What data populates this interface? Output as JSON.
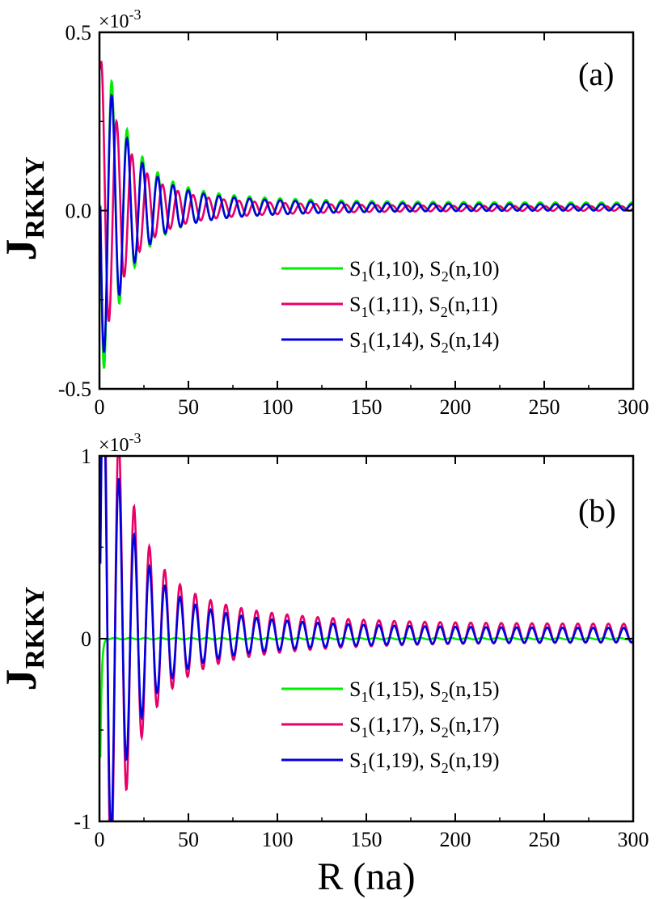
{
  "xlabel": "R (na)",
  "chart_data": [
    {
      "type": "line",
      "panel_label": "(a)",
      "ylabel": "J",
      "ylabel_sub": "RKKY",
      "multiplier": "×10",
      "multiplier_exp": "-3",
      "xlim": [
        0,
        300
      ],
      "ylim": [
        -0.5,
        0.5
      ],
      "xticks": [
        "0",
        "50",
        "100",
        "150",
        "200",
        "250",
        "300"
      ],
      "yticks": [
        "-0.5",
        "0.0",
        "0.5"
      ],
      "legend_position": "lower-right",
      "series": [
        {
          "label_main": "S",
          "label_sub1": "1",
          "label_mid": "(1,10), S",
          "label_sub2": "2",
          "label_end": "(n,10)",
          "color": "#00ee00",
          "period": 8.6,
          "phase": 1.2,
          "offset": 0.025,
          "decay": [
            0.9,
            0.15,
            0.02
          ]
        },
        {
          "label_main": "S",
          "label_sub1": "1",
          "label_mid": "(1,11), S",
          "label_sub2": "2",
          "label_end": "(n,11)",
          "color": "#e8006a",
          "period": 8.6,
          "phase": 5.5,
          "offset": 0.012,
          "decay": [
            0.75,
            0.12,
            0.012
          ]
        },
        {
          "label_main": "S",
          "label_sub1": "1",
          "label_mid": "(1,14), S",
          "label_sub2": "2",
          "label_end": "(n,14)",
          "color": "#0000dd",
          "period": 8.6,
          "phase": 1.2,
          "offset": 0.018,
          "decay": [
            0.8,
            0.14,
            0.017
          ]
        }
      ]
    },
    {
      "type": "line",
      "panel_label": "(b)",
      "ylabel": "J",
      "ylabel_sub": "RKKY",
      "multiplier": "×10",
      "multiplier_exp": "-3",
      "xlim": [
        0,
        300
      ],
      "ylim": [
        -1,
        1
      ],
      "xticks": [
        "0",
        "50",
        "100",
        "150",
        "200",
        "250",
        "300"
      ],
      "yticks": [
        "-1",
        "0",
        "1"
      ],
      "legend_position": "lower-right",
      "series": [
        {
          "label_main": "S",
          "label_sub1": "1",
          "label_mid": "(1,15), S",
          "label_sub2": "2",
          "label_end": "(n,15)",
          "color": "#00ee00",
          "period": 8.6,
          "phase": 0,
          "offset": 0.0,
          "decay": [
            0.0,
            0.0,
            0.0
          ],
          "spike": -0.65
        },
        {
          "label_main": "S",
          "label_sub1": "1",
          "label_mid": "(1,17), S",
          "label_sub2": "2",
          "label_end": "(n,17)",
          "color": "#e8006a",
          "period": 8.6,
          "phase": 4.6,
          "offset": 0.03,
          "decay": [
            1.6,
            0.35,
            0.05
          ]
        },
        {
          "label_main": "S",
          "label_sub1": "1",
          "label_mid": "(1,19), S",
          "label_sub2": "2",
          "label_end": "(n,19)",
          "color": "#0000dd",
          "period": 8.6,
          "phase": 4.6,
          "offset": 0.02,
          "decay": [
            1.3,
            0.27,
            0.038
          ]
        }
      ]
    }
  ]
}
